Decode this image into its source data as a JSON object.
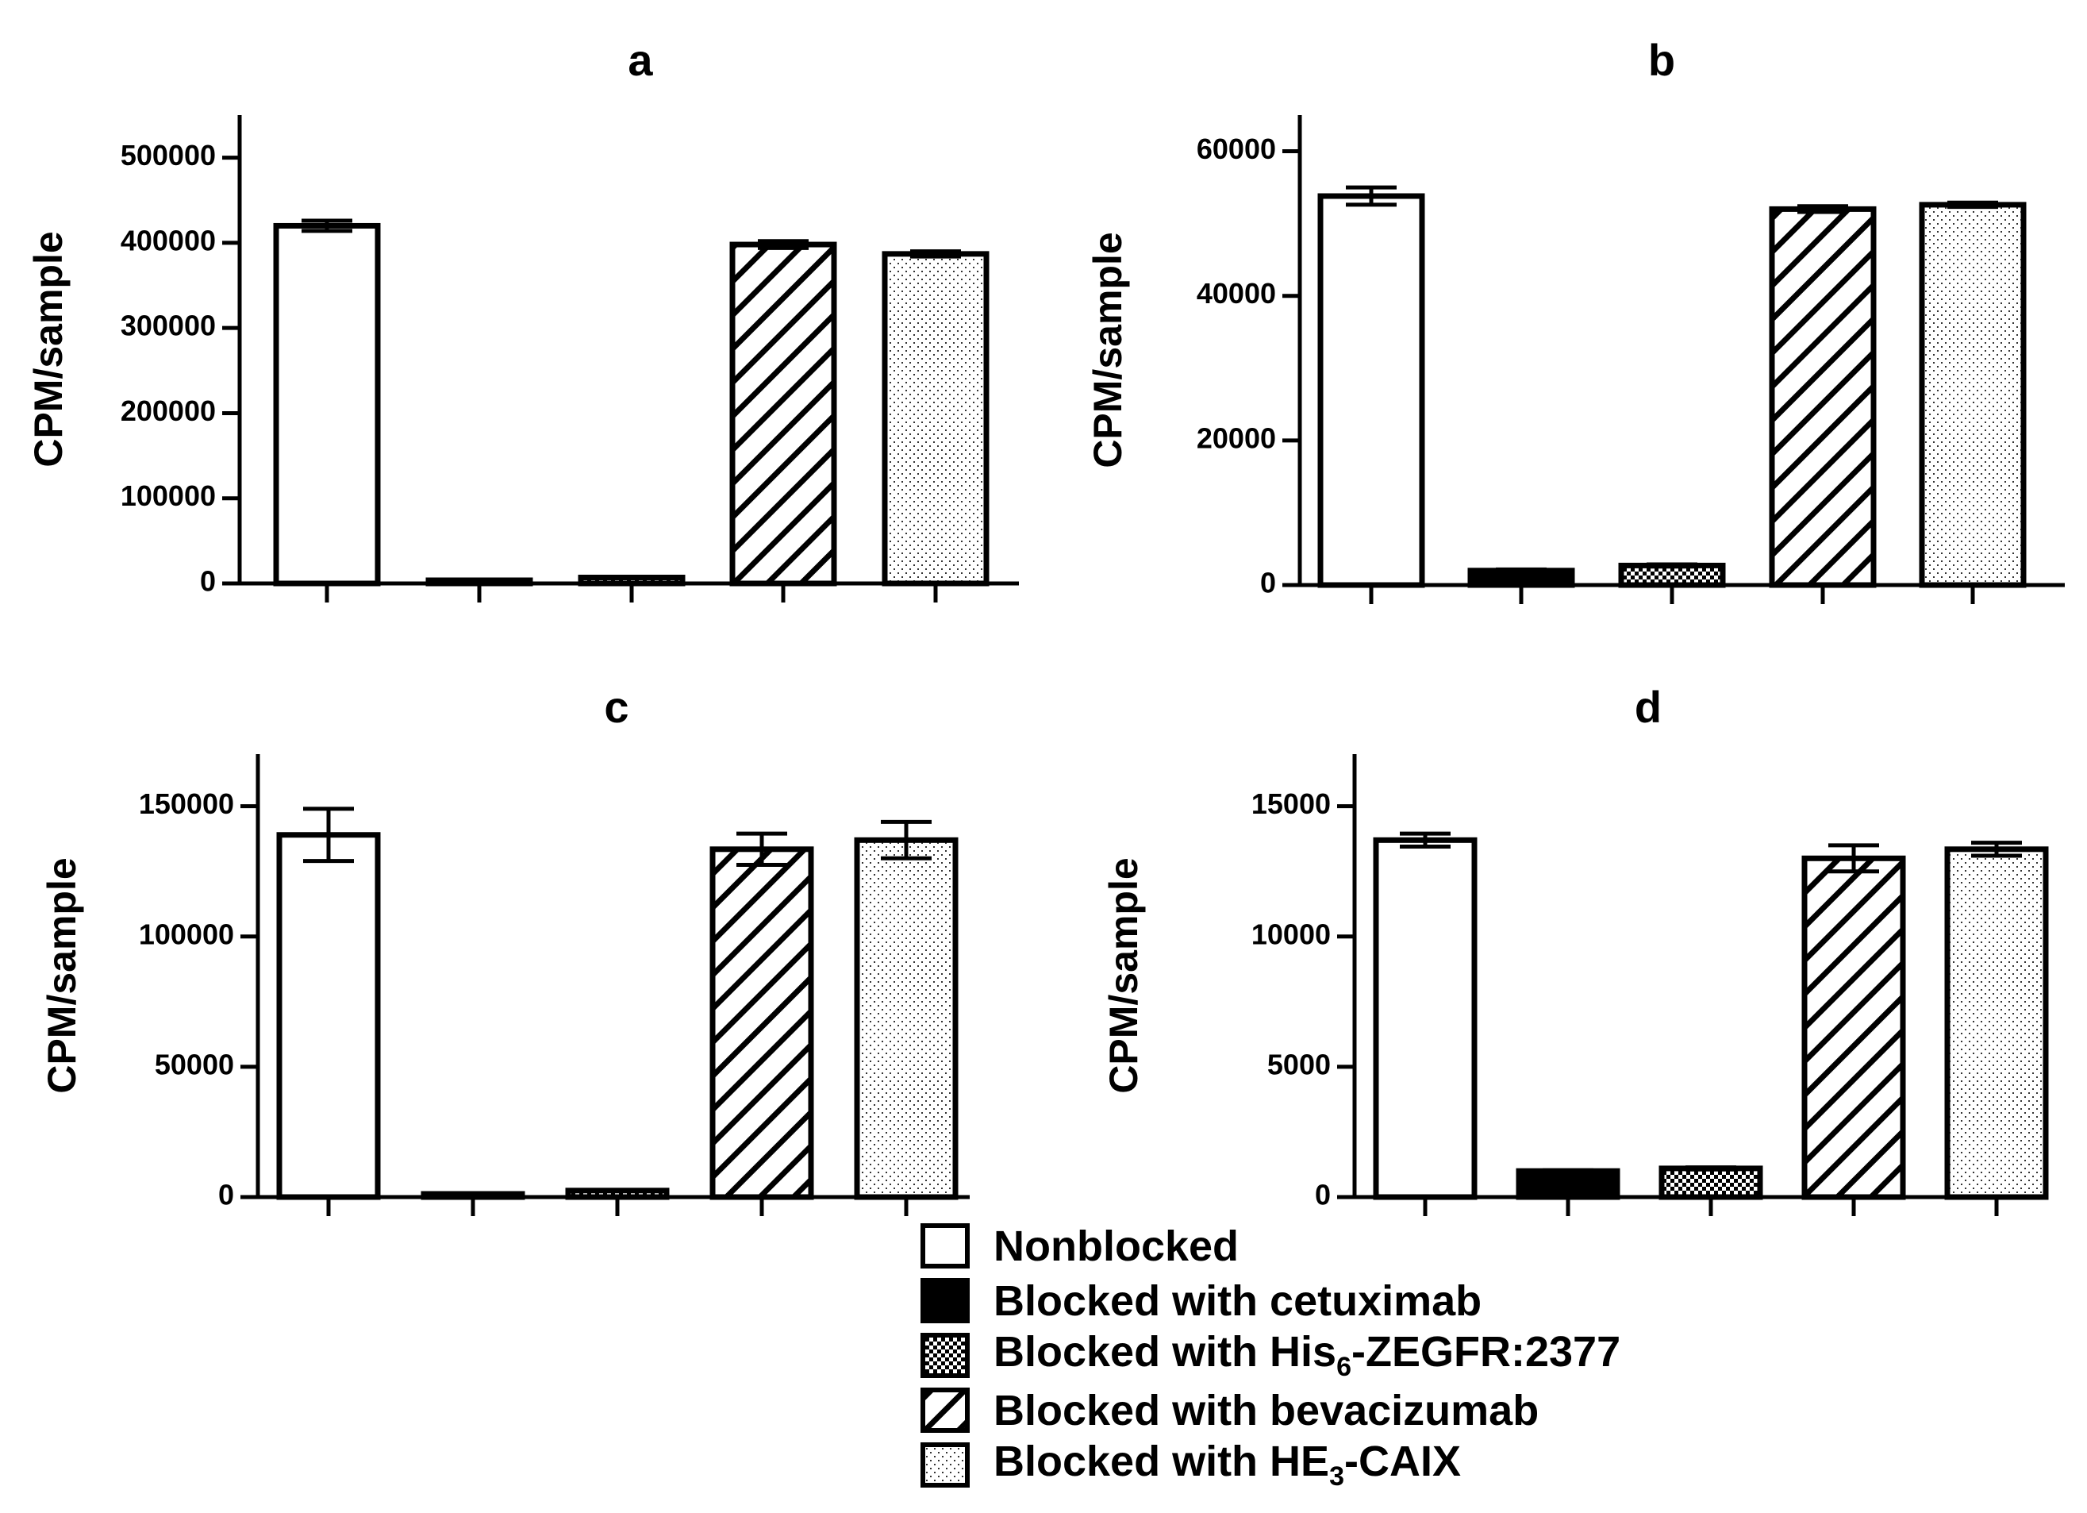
{
  "categories": [
    "Nonblocked",
    "Blocked with cetuximab",
    "Blocked with His6-ZEGFR:2377",
    "Blocked with bevacizumab",
    "Blocked with HE3-CAIX"
  ],
  "legend": [
    {
      "id": "nonblocked",
      "pre": "Nonblocked",
      "sub": "",
      "post": "",
      "pattern": "white"
    },
    {
      "id": "cetuximab",
      "pre": "Blocked with cetuximab",
      "sub": "",
      "post": "",
      "pattern": "black"
    },
    {
      "id": "zegfr",
      "pre": "Blocked with His",
      "sub": "6",
      "post": "-ZEGFR:2377",
      "pattern": "checker"
    },
    {
      "id": "bevacizumab",
      "pre": "Blocked with bevacizumab",
      "sub": "",
      "post": "",
      "pattern": "hatch"
    },
    {
      "id": "caix",
      "pre": "Blocked with HE",
      "sub": "3",
      "post": "-CAIX",
      "pattern": "dots"
    }
  ],
  "chart_data": [
    {
      "type": "bar",
      "title": "a",
      "ylabel": "CPM/sample",
      "xlabel": "",
      "ylim": [
        0,
        550000
      ],
      "yticks": [
        0,
        100000,
        200000,
        300000,
        400000,
        500000
      ],
      "values": [
        420000,
        1500,
        7000,
        398000,
        387000
      ],
      "errors": [
        6000,
        500,
        1000,
        4000,
        3000
      ]
    },
    {
      "type": "bar",
      "title": "b",
      "ylabel": "CPM/sample",
      "xlabel": "",
      "ylim": [
        0,
        65000
      ],
      "yticks": [
        0,
        20000,
        40000,
        60000
      ],
      "values": [
        53800,
        2000,
        2700,
        52000,
        52600
      ],
      "errors": [
        1200,
        150,
        150,
        400,
        300
      ]
    },
    {
      "type": "bar",
      "title": "c",
      "ylabel": "CPM/sample",
      "xlabel": "",
      "ylim": [
        0,
        170000
      ],
      "yticks": [
        0,
        50000,
        100000,
        150000
      ],
      "values": [
        139000,
        500,
        2500,
        133500,
        137000
      ],
      "errors": [
        10000,
        200,
        300,
        6000,
        7000
      ]
    },
    {
      "type": "bar",
      "title": "d",
      "ylabel": "CPM/sample",
      "xlabel": "",
      "ylim": [
        0,
        17000
      ],
      "yticks": [
        0,
        5000,
        10000,
        15000
      ],
      "values": [
        13700,
        1000,
        1100,
        13000,
        13350
      ],
      "errors": [
        250,
        30,
        40,
        500,
        250
      ]
    }
  ]
}
